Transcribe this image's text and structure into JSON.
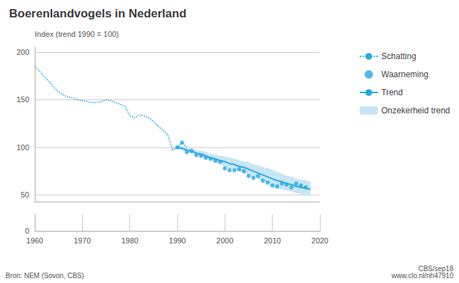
{
  "chart_data": [
    {
      "type": "line",
      "title": "Boerenlandvogels in Nederland",
      "ylabel": "Index (trend 1990 = 100)",
      "annotations": [
        "Bron: NEM (Sovon, CBS)",
        "CBS/sep18\nwww.clo.nl/nh47910"
      ],
      "xlim": [
        1960,
        2020
      ],
      "ylim": [
        43,
        205
      ],
      "yticks": [
        50,
        100,
        150,
        200
      ],
      "grid": true,
      "legend": "right",
      "tick_labels": "y",
      "series": [
        {
          "name": "Schatting",
          "type": "line",
          "line_style": "dotted",
          "color": "#29a8e0",
          "x": [
            1960,
            1961,
            1962,
            1963,
            1964,
            1965,
            1966,
            1967,
            1968,
            1969,
            1970,
            1971,
            1972,
            1973,
            1974,
            1975,
            1976,
            1977,
            1978,
            1979,
            1980,
            1981,
            1982,
            1983,
            1984,
            1985,
            1986,
            1987,
            1988,
            1989,
            1990,
            1991,
            1992
          ],
          "values": [
            185,
            180,
            174,
            169,
            163,
            158,
            155,
            153,
            152,
            150,
            149,
            148,
            147,
            147,
            148,
            150,
            149,
            147,
            145,
            143,
            133,
            131,
            134,
            133,
            131,
            127,
            122,
            118,
            113,
            97,
            100,
            105,
            100
          ]
        },
        {
          "name": "Waarneming",
          "type": "scatter",
          "marker": "circle",
          "color": "#29a8e0",
          "x": [
            1990,
            1991,
            1992,
            1993,
            1994,
            1995,
            1996,
            1997,
            1998,
            1999,
            2000,
            2001,
            2002,
            2003,
            2004,
            2005,
            2006,
            2007,
            2008,
            2009,
            2010,
            2011,
            2012,
            2013,
            2014,
            2015,
            2016,
            2017
          ],
          "values": [
            100,
            105,
            95,
            96,
            92,
            91,
            89,
            88,
            86,
            85,
            78,
            76,
            76,
            77,
            75,
            70,
            68,
            70,
            65,
            63,
            60,
            59,
            62,
            61,
            58,
            62,
            60,
            58
          ]
        },
        {
          "name": "Trend",
          "type": "line",
          "line_style": "solid",
          "color": "#29a8e0",
          "x": [
            1990,
            1991,
            1992,
            1993,
            1994,
            1995,
            1996,
            1997,
            1998,
            1999,
            2000,
            2001,
            2002,
            2003,
            2004,
            2005,
            2006,
            2007,
            2008,
            2009,
            2010,
            2011,
            2012,
            2013,
            2014,
            2015,
            2016,
            2017,
            2018
          ],
          "values": [
            100,
            99,
            97,
            96,
            94,
            93,
            91,
            89,
            88,
            86,
            85,
            83,
            82,
            80,
            79,
            77,
            75,
            73,
            71,
            69,
            67,
            65,
            64,
            62,
            61,
            59,
            58,
            57,
            56
          ]
        },
        {
          "name": "Onzekerheid trend",
          "type": "band",
          "color": "#c8e6f5",
          "x": [
            1990,
            1991,
            1992,
            1993,
            1994,
            1995,
            1996,
            1997,
            1998,
            1999,
            2000,
            2001,
            2002,
            2003,
            2004,
            2005,
            2006,
            2007,
            2008,
            2009,
            2010,
            2011,
            2012,
            2013,
            2014,
            2015,
            2016,
            2017,
            2018
          ],
          "lower": [
            98,
            97,
            95,
            94,
            92,
            91,
            89,
            87,
            85,
            82,
            80,
            78,
            77,
            75,
            73,
            71,
            69,
            67,
            64,
            62,
            59,
            57,
            56,
            55,
            54,
            52,
            51,
            50,
            49
          ],
          "upper": [
            102,
            101,
            100,
            99,
            97,
            96,
            95,
            93,
            92,
            91,
            90,
            89,
            88,
            86,
            85,
            84,
            82,
            81,
            79,
            78,
            76,
            74,
            72,
            70,
            69,
            67,
            66,
            65,
            64
          ]
        }
      ]
    },
    {
      "type": "line",
      "xlim": [
        1960,
        2020
      ],
      "xticks": [
        1960,
        1970,
        1980,
        1990,
        2000,
        2010,
        2020
      ],
      "ylim": [
        0,
        1
      ],
      "yticks": [
        0
      ],
      "grid": true
    }
  ]
}
